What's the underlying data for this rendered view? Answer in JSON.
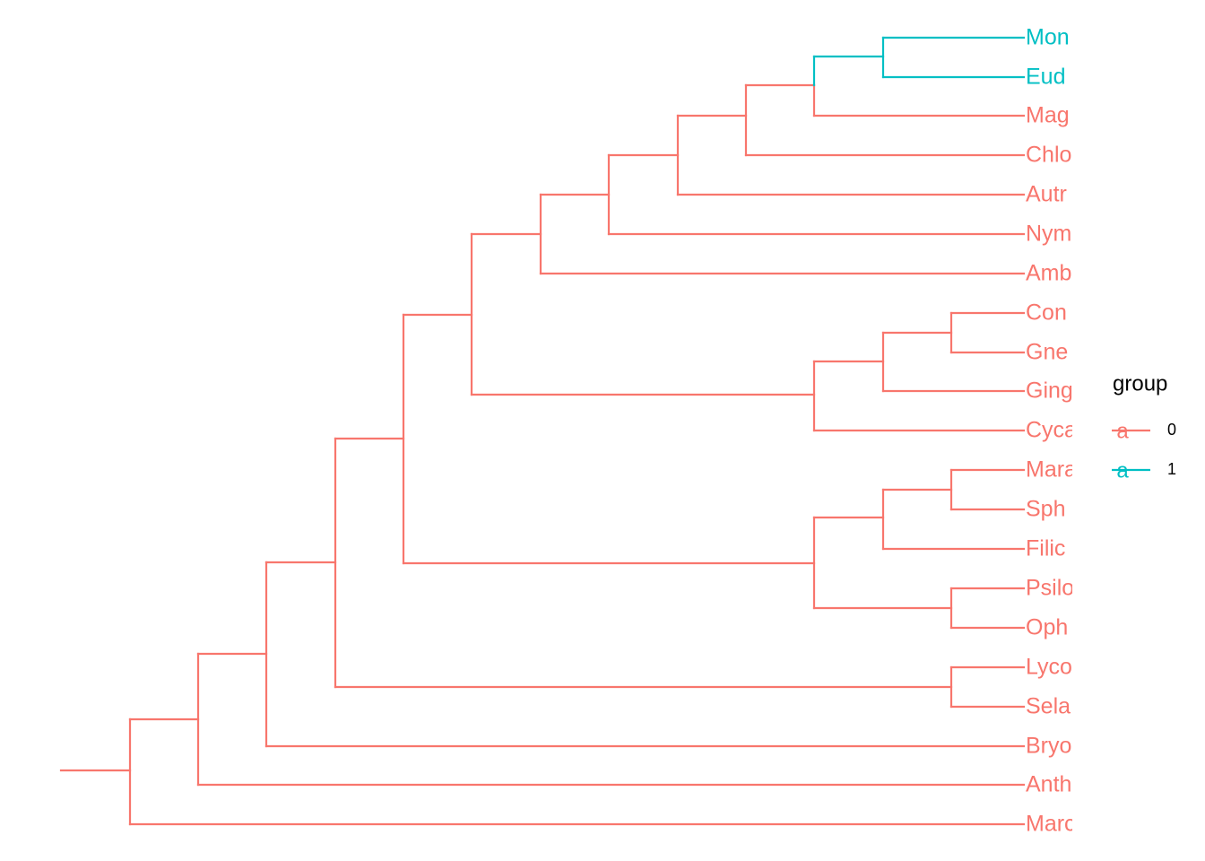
{
  "tips": [
    {
      "label": "Mon",
      "group": 1
    },
    {
      "label": "Eud",
      "group": 1
    },
    {
      "label": "Mag",
      "group": 0
    },
    {
      "label": "Chlo",
      "group": 0
    },
    {
      "label": "Autr",
      "group": 0
    },
    {
      "label": "Nym",
      "group": 0
    },
    {
      "label": "Amb",
      "group": 0
    },
    {
      "label": "Con",
      "group": 0
    },
    {
      "label": "Gne",
      "group": 0
    },
    {
      "label": "Ging",
      "group": 0
    },
    {
      "label": "Cyca",
      "group": 0
    },
    {
      "label": "Mara",
      "group": 0
    },
    {
      "label": "Sph",
      "group": 0
    },
    {
      "label": "Filic",
      "group": 0
    },
    {
      "label": "Psilo",
      "group": 0
    },
    {
      "label": "Oph",
      "group": 0
    },
    {
      "label": "Lyco",
      "group": 0
    },
    {
      "label": "Sela",
      "group": 0
    },
    {
      "label": "Bryo",
      "group": 0
    },
    {
      "label": "Anth",
      "group": 0
    },
    {
      "label": "Marc",
      "group": 0
    }
  ],
  "legend": {
    "title": "group",
    "key_glyph": "a",
    "items": [
      {
        "label": "0",
        "color": "#F8766D"
      },
      {
        "label": "1",
        "color": "#00BFC4"
      }
    ]
  }
}
